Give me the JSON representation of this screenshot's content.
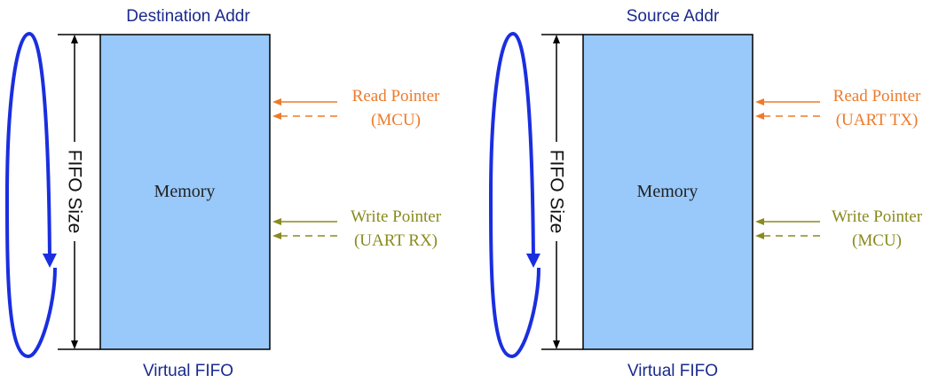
{
  "colors": {
    "memory_fill": "#99c9fa",
    "loop_arrow": "#1a2ee0",
    "read_pointer": "#ee7a2a",
    "write_pointer": "#8a8a1e",
    "title_text": "#1a2a8c"
  },
  "diagrams": [
    {
      "top_label": "Destination Addr",
      "bottom_label": "Virtual FIFO",
      "memory_label": "Memory",
      "size_label": "FIFO Size",
      "read_pointer": {
        "line1": "Read Pointer",
        "line2": "(MCU)"
      },
      "write_pointer": {
        "line1": "Write Pointer",
        "line2": "(UART RX)"
      }
    },
    {
      "top_label": "Source Addr",
      "bottom_label": "Virtual FIFO",
      "memory_label": "Memory",
      "size_label": "FIFO Size",
      "read_pointer": {
        "line1": "Read Pointer",
        "line2": "(UART TX)"
      },
      "write_pointer": {
        "line1": "Write Pointer",
        "line2": "(MCU)"
      }
    }
  ]
}
